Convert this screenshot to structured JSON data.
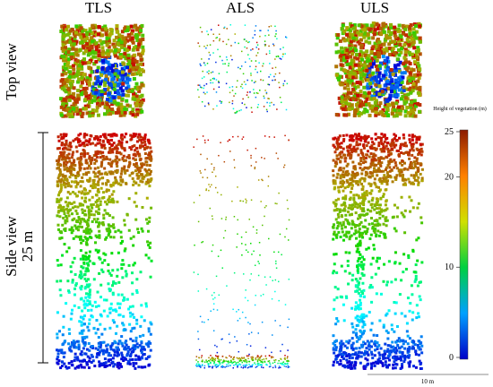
{
  "columns": [
    "TLS",
    "ALS",
    "ULS"
  ],
  "rows": [
    "Top view",
    "Side view"
  ],
  "height_scale": "25 m",
  "length_scale": "10 m",
  "colorbar": {
    "title": "Height of vegetation (m)",
    "lim": [
      0,
      25
    ],
    "ticks": [
      0,
      10,
      20,
      25
    ]
  }
}
